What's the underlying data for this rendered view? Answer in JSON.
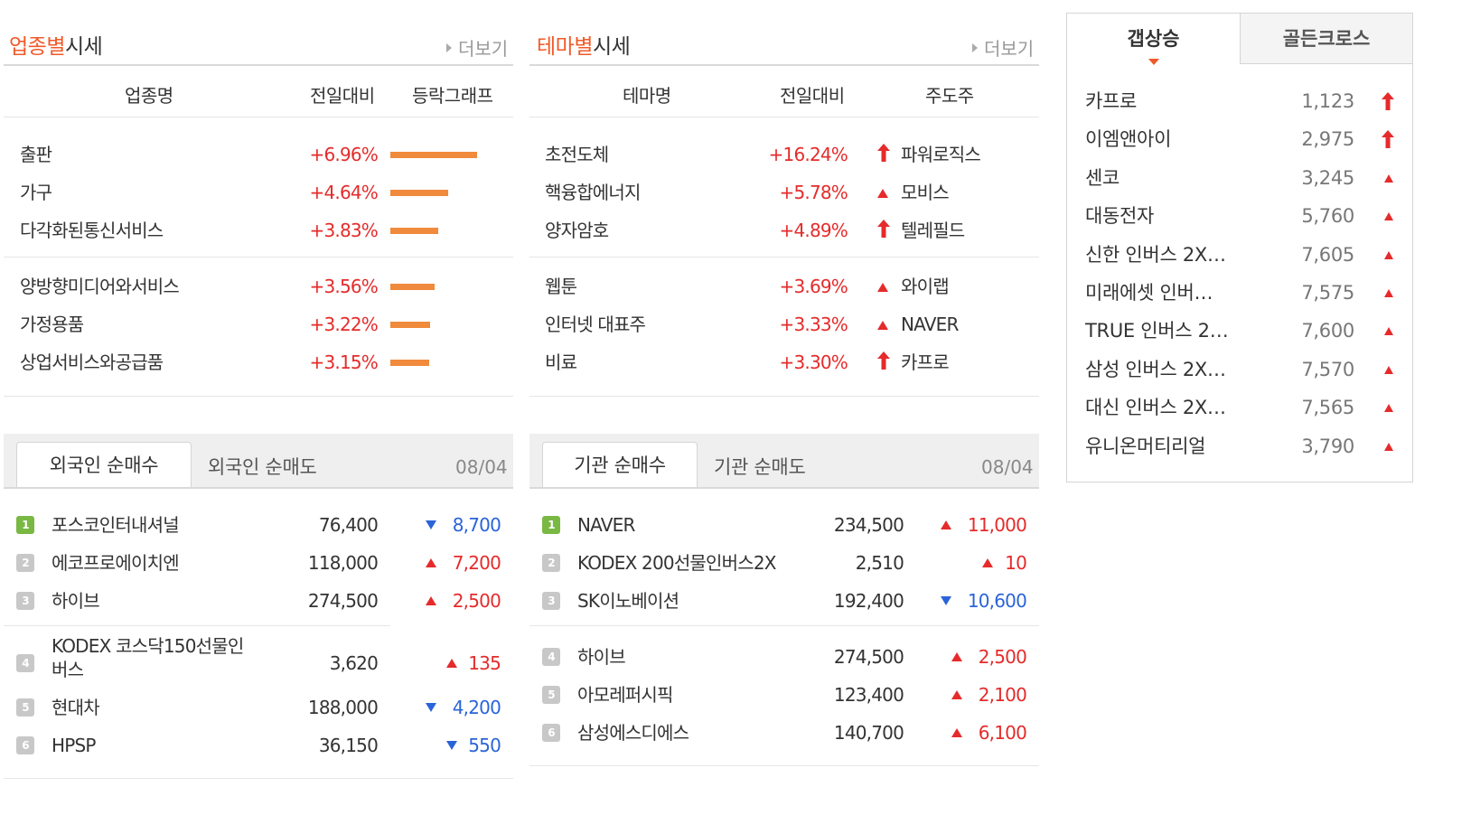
{
  "sector": {
    "title_accent": "업종별",
    "title_rest": "시세",
    "more": "더보기",
    "headers": [
      "업종명",
      "전일대비",
      "등락그래프"
    ],
    "rows": [
      {
        "name": "출판",
        "change": "+6.96%",
        "bar": 6.96
      },
      {
        "name": "가구",
        "change": "+4.64%",
        "bar": 4.64
      },
      {
        "name": "다각화된통신서비스",
        "change": "+3.83%",
        "bar": 3.83
      },
      {
        "name": "양방향미디어와서비스",
        "change": "+3.56%",
        "bar": 3.56
      },
      {
        "name": "가정용품",
        "change": "+3.22%",
        "bar": 3.22
      },
      {
        "name": "상업서비스와공급품",
        "change": "+3.15%",
        "bar": 3.15
      }
    ]
  },
  "theme": {
    "title_accent": "테마별",
    "title_rest": "시세",
    "more": "더보기",
    "headers": [
      "테마명",
      "전일대비",
      "주도주"
    ],
    "rows": [
      {
        "name": "초전도체",
        "change": "+16.24%",
        "icon": "limit-up-arrow-icon",
        "leader": "파워로직스"
      },
      {
        "name": "핵융합에너지",
        "change": "+5.78%",
        "icon": "up-triangle-icon",
        "leader": "모비스"
      },
      {
        "name": "양자암호",
        "change": "+4.89%",
        "icon": "limit-up-arrow-icon",
        "leader": "텔레필드"
      },
      {
        "name": "웹툰",
        "change": "+3.69%",
        "icon": "up-triangle-icon",
        "leader": "와이랩"
      },
      {
        "name": "인터넷 대표주",
        "change": "+3.33%",
        "icon": "up-triangle-icon",
        "leader": "NAVER"
      },
      {
        "name": "비료",
        "change": "+3.30%",
        "icon": "limit-up-arrow-icon",
        "leader": "카프로"
      }
    ]
  },
  "foreign": {
    "tab_active": "외국인 순매수",
    "tab_other": "외국인 순매도",
    "date": "08/04",
    "rows": [
      {
        "rank": "1",
        "name": "포스코인터내셔널",
        "price": "76,400",
        "dir": "down",
        "change": "8,700"
      },
      {
        "rank": "2",
        "name": "에코프로에이치엔",
        "price": "118,000",
        "dir": "up",
        "change": "7,200"
      },
      {
        "rank": "3",
        "name": "하이브",
        "price": "274,500",
        "dir": "up",
        "change": "2,500"
      },
      {
        "rank": "4",
        "name": "KODEX 코스닥150선물인버스",
        "price": "3,620",
        "dir": "up",
        "change": "135"
      },
      {
        "rank": "5",
        "name": "현대차",
        "price": "188,000",
        "dir": "down",
        "change": "4,200"
      },
      {
        "rank": "6",
        "name": "HPSP",
        "price": "36,150",
        "dir": "down",
        "change": "550"
      }
    ]
  },
  "institution": {
    "tab_active": "기관 순매수",
    "tab_other": "기관 순매도",
    "date": "08/04",
    "rows": [
      {
        "rank": "1",
        "name": "NAVER",
        "price": "234,500",
        "dir": "up",
        "change": "11,000"
      },
      {
        "rank": "2",
        "name": "KODEX 200선물인버스2X",
        "price": "2,510",
        "dir": "up",
        "change": "10"
      },
      {
        "rank": "3",
        "name": "SK이노베이션",
        "price": "192,400",
        "dir": "down",
        "change": "10,600"
      },
      {
        "rank": "4",
        "name": "하이브",
        "price": "274,500",
        "dir": "up",
        "change": "2,500"
      },
      {
        "rank": "5",
        "name": "아모레퍼시픽",
        "price": "123,400",
        "dir": "up",
        "change": "2,100"
      },
      {
        "rank": "6",
        "name": "삼성에스디에스",
        "price": "140,700",
        "dir": "up",
        "change": "6,100"
      }
    ]
  },
  "side": {
    "tab_active": "갭상승",
    "tab_other": "골든크로스",
    "rows": [
      {
        "name": "카프로",
        "price": "1,123",
        "icon": "limit-up-arrow-icon"
      },
      {
        "name": "이엠앤아이",
        "price": "2,975",
        "icon": "limit-up-arrow-icon"
      },
      {
        "name": "센코",
        "price": "3,245",
        "icon": "up-triangle-icon"
      },
      {
        "name": "대동전자",
        "price": "5,760",
        "icon": "up-triangle-icon"
      },
      {
        "name": "신한 인버스 2X…",
        "price": "7,605",
        "icon": "up-triangle-icon"
      },
      {
        "name": "미래에셋 인버…",
        "price": "7,575",
        "icon": "up-triangle-icon"
      },
      {
        "name": "TRUE 인버스 2…",
        "price": "7,600",
        "icon": "up-triangle-icon"
      },
      {
        "name": "삼성 인버스 2X…",
        "price": "7,570",
        "icon": "up-triangle-icon"
      },
      {
        "name": "대신 인버스 2X…",
        "price": "7,565",
        "icon": "up-triangle-icon"
      },
      {
        "name": "유니온머티리얼",
        "price": "3,790",
        "icon": "up-triangle-icon"
      }
    ]
  },
  "colors": {
    "accent": "#f05a28",
    "up": "#e52b2b",
    "down": "#2a64d8",
    "bar": "#f08a3c",
    "rank_first": "#7ab844"
  }
}
